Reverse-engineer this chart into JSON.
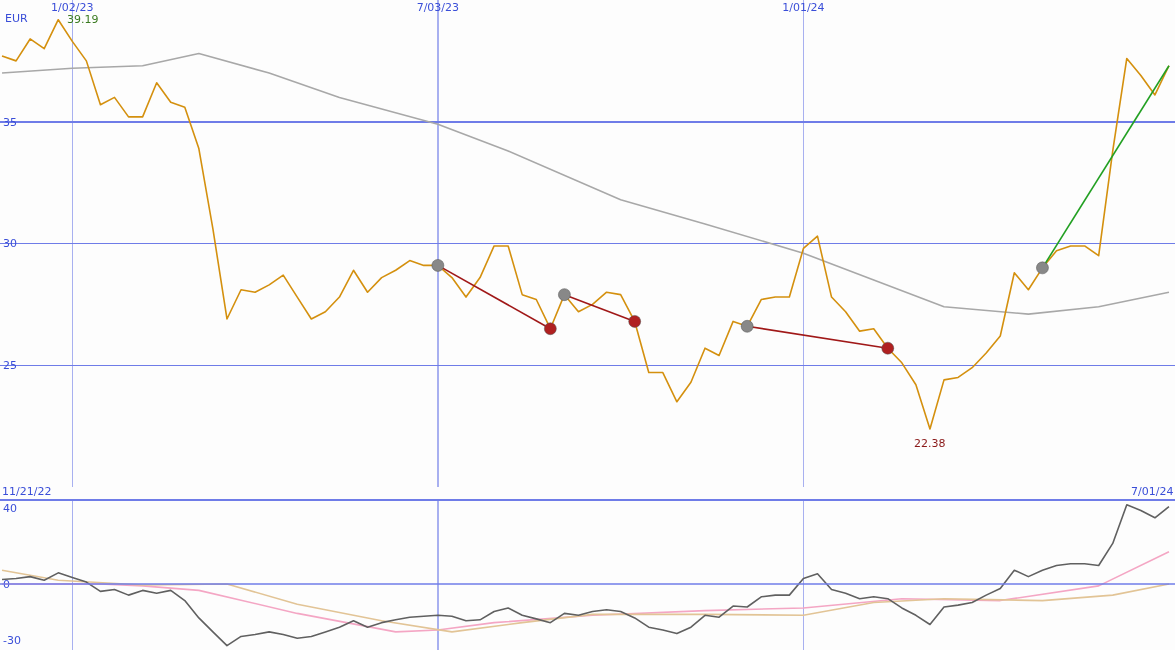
{
  "chart_data": [
    {
      "type": "line",
      "ylabel": "EUR",
      "x": [
        "2022-11-28",
        "2022-12-05",
        "2022-12-12",
        "2022-12-19",
        "2022-12-26",
        "2023-01-02",
        "2023-01-09",
        "2023-01-16",
        "2023-01-23",
        "2023-01-30",
        "2023-02-06",
        "2023-02-13",
        "2023-02-20",
        "2023-02-27",
        "2023-03-06",
        "2023-03-13",
        "2023-03-20",
        "2023-03-27",
        "2023-04-03",
        "2023-04-10",
        "2023-04-17",
        "2023-04-24",
        "2023-05-01",
        "2023-05-08",
        "2023-05-15",
        "2023-05-22",
        "2023-05-29",
        "2023-06-05",
        "2023-06-12",
        "2023-06-19",
        "2023-06-26",
        "2023-07-03",
        "2023-07-10",
        "2023-07-17",
        "2023-07-24",
        "2023-07-31",
        "2023-08-07",
        "2023-08-14",
        "2023-08-21",
        "2023-08-28",
        "2023-09-04",
        "2023-09-11",
        "2023-09-18",
        "2023-09-25",
        "2023-10-02",
        "2023-10-09",
        "2023-10-16",
        "2023-10-23",
        "2023-10-30",
        "2023-11-06",
        "2023-11-13",
        "2023-11-20",
        "2023-11-27",
        "2023-12-04",
        "2023-12-11",
        "2023-12-18",
        "2023-12-25",
        "2024-01-01",
        "2024-01-08",
        "2024-01-15",
        "2024-01-22",
        "2024-01-29",
        "2024-02-05",
        "2024-02-12",
        "2024-02-19",
        "2024-02-26",
        "2024-03-04",
        "2024-03-11",
        "2024-03-18",
        "2024-03-25",
        "2024-04-01",
        "2024-04-08",
        "2024-04-15",
        "2024-04-22",
        "2024-04-29",
        "2024-05-06",
        "2024-05-13",
        "2024-05-20",
        "2024-05-27",
        "2024-06-03",
        "2024-06-10",
        "2024-06-17",
        "2024-06-24",
        "2024-07-01"
      ],
      "xlim": [
        "2022-11-27",
        "2024-07-04"
      ],
      "xticks": [
        {
          "value": "2023-01-02",
          "label": "1/02/23"
        },
        {
          "value": "2023-07-03",
          "label": "7/03/23"
        },
        {
          "value": "2024-01-01",
          "label": "1/01/24"
        }
      ],
      "ylim": [
        20,
        40
      ],
      "yticks": [
        25,
        30,
        35
      ],
      "grid": true,
      "legend": false,
      "annotations": [
        {
          "text": "39.19",
          "x": "2022-12-26",
          "y": 39.19
        },
        {
          "text": "22.38",
          "x": "2024-03-04",
          "y": 22.38
        }
      ],
      "series": [
        {
          "type": "line",
          "color": "#a8a8a8",
          "x": [
            "2022-11-28",
            "2023-01-02",
            "2023-02-06",
            "2023-03-06",
            "2023-04-10",
            "2023-05-15",
            "2023-07-03",
            "2023-08-07",
            "2023-10-02",
            "2023-11-13",
            "2024-01-01",
            "2024-02-05",
            "2024-03-11",
            "2024-04-22",
            "2024-05-27",
            "2024-07-01"
          ],
          "values": [
            37.0,
            37.2,
            37.3,
            37.8,
            37.0,
            36.0,
            34.9,
            33.8,
            31.8,
            30.8,
            29.6,
            28.5,
            27.4,
            27.1,
            27.4,
            28.0
          ]
        },
        {
          "type": "line",
          "color": "#d4900e",
          "values": [
            37.7,
            37.5,
            38.4,
            38.0,
            39.19,
            38.3,
            37.5,
            35.7,
            36.0,
            35.2,
            35.2,
            36.6,
            35.8,
            35.6,
            33.9,
            30.6,
            26.9,
            28.1,
            28.0,
            28.3,
            28.7,
            27.8,
            26.9,
            27.2,
            27.8,
            28.9,
            28.0,
            28.6,
            28.9,
            29.3,
            29.1,
            29.1,
            28.6,
            27.8,
            28.6,
            29.9,
            29.9,
            27.9,
            27.7,
            26.5,
            27.9,
            27.2,
            27.5,
            28.0,
            27.9,
            26.8,
            24.7,
            24.7,
            23.5,
            24.3,
            25.7,
            25.4,
            26.8,
            26.6,
            27.7,
            27.8,
            27.8,
            29.8,
            30.3,
            27.8,
            27.2,
            26.4,
            26.5,
            25.7,
            25.1,
            24.2,
            22.38,
            24.4,
            24.5,
            24.9,
            25.5,
            26.2,
            28.8,
            28.1,
            29.0,
            29.7,
            29.9,
            29.9,
            29.5,
            33.8,
            37.6,
            36.9,
            36.1,
            37.3
          ]
        },
        {
          "type": "line",
          "color": "#a01818",
          "x": [
            "2023-07-03",
            "2023-08-28"
          ],
          "values": [
            29.1,
            26.5
          ]
        },
        {
          "type": "line",
          "color": "#a01818",
          "x": [
            "2023-09-04",
            "2023-10-09"
          ],
          "values": [
            27.9,
            26.8
          ]
        },
        {
          "type": "line",
          "color": "#a01818",
          "x": [
            "2023-12-04",
            "2024-02-12"
          ],
          "values": [
            26.6,
            25.7
          ]
        },
        {
          "type": "line",
          "color": "#22a022",
          "x": [
            "2024-04-29",
            "2024-07-01"
          ],
          "values": [
            29.0,
            37.3
          ]
        },
        {
          "type": "scatter",
          "color": "#888888",
          "marker": "circle",
          "x": [
            "2023-07-03",
            "2023-09-04",
            "2023-12-04",
            "2024-04-29"
          ],
          "values": [
            29.1,
            27.9,
            26.6,
            29.0
          ]
        },
        {
          "type": "scatter",
          "color": "#b02020",
          "marker": "circle",
          "x": [
            "2023-08-28",
            "2023-10-09",
            "2024-02-12"
          ],
          "values": [
            26.5,
            26.8,
            25.7
          ]
        }
      ]
    },
    {
      "type": "line",
      "x": [
        "2022-11-28",
        "2022-12-05",
        "2022-12-12",
        "2022-12-19",
        "2022-12-26",
        "2023-01-02",
        "2023-01-09",
        "2023-01-16",
        "2023-01-23",
        "2023-01-30",
        "2023-02-06",
        "2023-02-13",
        "2023-02-20",
        "2023-02-27",
        "2023-03-06",
        "2023-03-13",
        "2023-03-20",
        "2023-03-27",
        "2023-04-03",
        "2023-04-10",
        "2023-04-17",
        "2023-04-24",
        "2023-05-01",
        "2023-05-08",
        "2023-05-15",
        "2023-05-22",
        "2023-05-29",
        "2023-06-05",
        "2023-06-12",
        "2023-06-19",
        "2023-06-26",
        "2023-07-03",
        "2023-07-10",
        "2023-07-17",
        "2023-07-24",
        "2023-07-31",
        "2023-08-07",
        "2023-08-14",
        "2023-08-21",
        "2023-08-28",
        "2023-09-04",
        "2023-09-11",
        "2023-09-18",
        "2023-09-25",
        "2023-10-02",
        "2023-10-09",
        "2023-10-16",
        "2023-10-23",
        "2023-10-30",
        "2023-11-06",
        "2023-11-13",
        "2023-11-20",
        "2023-11-27",
        "2023-12-04",
        "2023-12-11",
        "2023-12-18",
        "2023-12-25",
        "2024-01-01",
        "2024-01-08",
        "2024-01-15",
        "2024-01-22",
        "2024-01-29",
        "2024-02-05",
        "2024-02-12",
        "2024-02-19",
        "2024-02-26",
        "2024-03-04",
        "2024-03-11",
        "2024-03-18",
        "2024-03-25",
        "2024-04-01",
        "2024-04-08",
        "2024-04-15",
        "2024-04-22",
        "2024-04-29",
        "2024-05-06",
        "2024-05-13",
        "2024-05-20",
        "2024-05-27",
        "2024-06-03",
        "2024-06-10",
        "2024-06-17",
        "2024-06-24",
        "2024-07-01"
      ],
      "xlim": [
        "2022-11-27",
        "2024-07-04"
      ],
      "xticks": [
        {
          "value": "2023-01-02",
          "label": null
        },
        {
          "value": "2023-07-03",
          "label": null
        },
        {
          "value": "2024-01-01",
          "label": null
        }
      ],
      "ylim": [
        -35,
        44
      ],
      "yticks": [
        -30,
        0,
        40
      ],
      "grid": "x",
      "legend": false,
      "tick_labels": "y",
      "ref_lines": [
        {
          "axis": "y",
          "value": 0
        }
      ],
      "annotations": [
        "11/21/22",
        "7/01/24"
      ],
      "series": [
        {
          "type": "line",
          "color": "#f4a6c4",
          "x": [
            "2022-11-28",
            "2023-01-16",
            "2023-02-06",
            "2023-03-06",
            "2023-04-24",
            "2023-06-12",
            "2023-07-03",
            "2023-07-31",
            "2023-09-18",
            "2023-11-13",
            "2024-01-01",
            "2024-02-19",
            "2024-04-08",
            "2024-05-27",
            "2024-07-01"
          ],
          "values": [
            0,
            0,
            -1.0,
            -3.4,
            -15.6,
            -25.4,
            -24.4,
            -20.5,
            -16.6,
            -14.1,
            -12.7,
            -7.8,
            -8.8,
            -1.0,
            17.1
          ]
        },
        {
          "type": "line",
          "color": "#e2c496",
          "x": [
            "2022-11-28",
            "2022-12-26",
            "2023-02-06",
            "2023-03-20",
            "2023-04-24",
            "2023-06-05",
            "2023-07-10",
            "2023-08-14",
            "2023-09-18",
            "2023-11-13",
            "2024-01-01",
            "2024-02-05",
            "2024-03-11",
            "2024-04-29",
            "2024-06-03",
            "2024-07-01"
          ],
          "values": [
            7.3,
            2.0,
            -0.5,
            0,
            -10.7,
            -19.5,
            -25.4,
            -20.5,
            -16.1,
            -16.1,
            -16.6,
            -9.8,
            -7.8,
            -8.8,
            -5.9,
            0
          ]
        },
        {
          "type": "line",
          "color": "#606060",
          "values": [
            2.4,
            2.9,
            3.9,
            2.0,
            5.9,
            3.4,
            1.0,
            -3.9,
            -2.9,
            -5.9,
            -3.4,
            -4.9,
            -3.4,
            -8.8,
            -18.0,
            -25.4,
            -32.7,
            -27.8,
            -26.8,
            -25.4,
            -26.8,
            -28.8,
            -27.8,
            -25.4,
            -22.9,
            -19.5,
            -22.9,
            -20.5,
            -19.0,
            -17.6,
            -17.1,
            -16.6,
            -17.1,
            -19.5,
            -19.0,
            -14.6,
            -12.7,
            -16.6,
            -18.5,
            -20.5,
            -15.6,
            -16.6,
            -14.6,
            -13.7,
            -14.6,
            -18.0,
            -22.9,
            -24.4,
            -26.3,
            -22.9,
            -16.6,
            -17.6,
            -11.7,
            -12.2,
            -6.8,
            -5.9,
            -5.9,
            2.9,
            5.4,
            -2.9,
            -4.9,
            -7.8,
            -6.8,
            -7.8,
            -12.7,
            -16.6,
            -21.5,
            -12.2,
            -11.2,
            -9.8,
            -5.9,
            -2.4,
            7.3,
            3.9,
            7.3,
            9.8,
            10.7,
            10.7,
            9.8,
            21.5,
            42.0,
            39.0,
            35.1,
            41.0
          ]
        }
      ]
    }
  ]
}
